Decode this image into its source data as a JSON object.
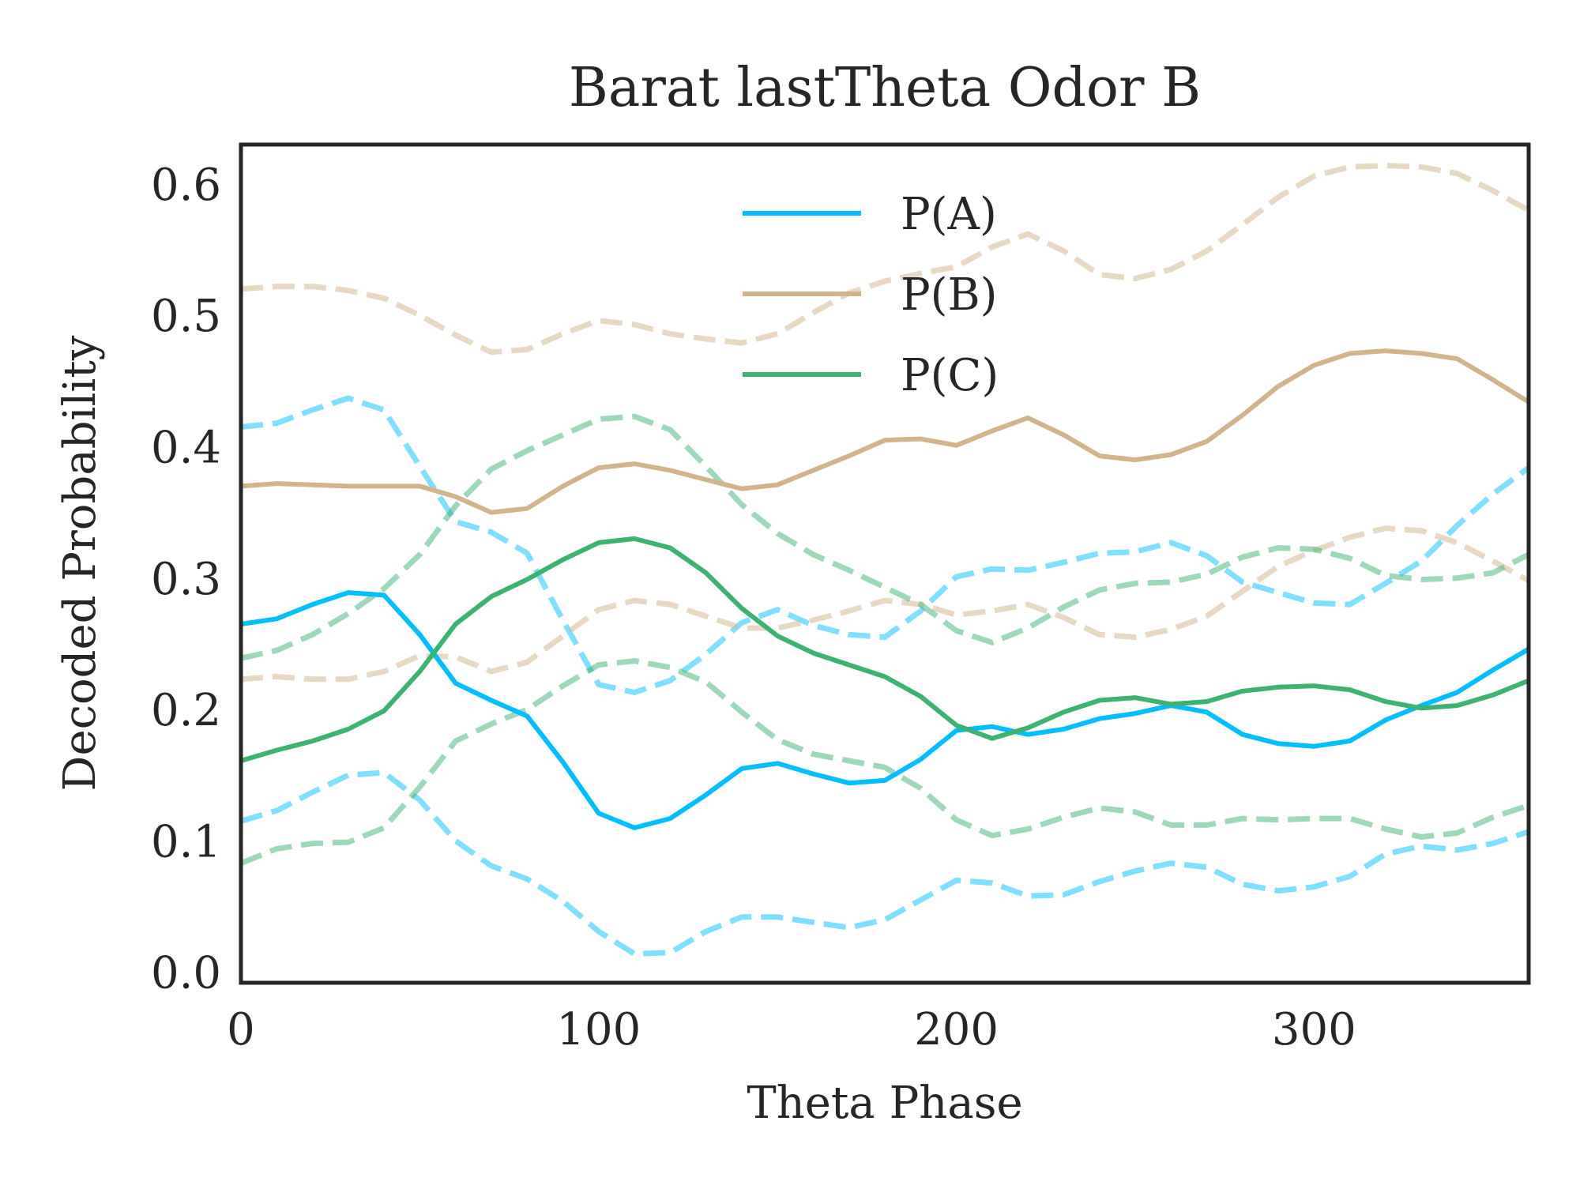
{
  "chart_data": {
    "type": "line",
    "title": "Barat lastTheta Odor B",
    "xlabel": "Theta Phase",
    "ylabel": "Decoded Probability",
    "xlim": [
      0,
      360
    ],
    "ylim": [
      -0.008,
      0.63
    ],
    "xticks": [
      0,
      100,
      200,
      300
    ],
    "xtick_labels": [
      "0",
      "100",
      "200",
      "300"
    ],
    "yticks": [
      0.0,
      0.1,
      0.2,
      0.3,
      0.4,
      0.5,
      0.6
    ],
    "ytick_labels": [
      "0.0",
      "0.1",
      "0.2",
      "0.3",
      "0.4",
      "0.5",
      "0.6"
    ],
    "grid": false,
    "legend_position": "top-center",
    "x": [
      0,
      10,
      20,
      30,
      40,
      50,
      60,
      70,
      80,
      90,
      100,
      110,
      120,
      130,
      140,
      150,
      160,
      170,
      180,
      190,
      200,
      210,
      220,
      230,
      240,
      250,
      260,
      270,
      280,
      290,
      300,
      310,
      320,
      330,
      340,
      350,
      360
    ],
    "series": [
      {
        "name": "P(A)",
        "color": "#00bfff",
        "style": "solid",
        "values": [
          0.265,
          0.269,
          0.28,
          0.289,
          0.287,
          0.257,
          0.22,
          0.207,
          0.195,
          0.16,
          0.121,
          0.11,
          0.117,
          0.135,
          0.155,
          0.159,
          0.151,
          0.144,
          0.146,
          0.162,
          0.184,
          0.187,
          0.181,
          0.185,
          0.193,
          0.197,
          0.203,
          0.198,
          0.181,
          0.174,
          0.172,
          0.176,
          0.192,
          0.203,
          0.213,
          0.23,
          0.246
        ]
      },
      {
        "name": "P(A) upper",
        "color": "#00bfff",
        "style": "dashed",
        "values": [
          0.415,
          0.418,
          0.428,
          0.437,
          0.428,
          0.385,
          0.343,
          0.335,
          0.319,
          0.268,
          0.219,
          0.213,
          0.222,
          0.242,
          0.266,
          0.276,
          0.264,
          0.257,
          0.255,
          0.275,
          0.301,
          0.307,
          0.306,
          0.312,
          0.319,
          0.32,
          0.327,
          0.317,
          0.297,
          0.289,
          0.281,
          0.28,
          0.296,
          0.313,
          0.34,
          0.364,
          0.384
        ]
      },
      {
        "name": "P(A) lower",
        "color": "#00bfff",
        "style": "dashed",
        "values": [
          0.115,
          0.123,
          0.137,
          0.15,
          0.152,
          0.131,
          0.1,
          0.081,
          0.071,
          0.054,
          0.031,
          0.014,
          0.015,
          0.031,
          0.042,
          0.042,
          0.038,
          0.034,
          0.04,
          0.055,
          0.07,
          0.068,
          0.058,
          0.059,
          0.069,
          0.077,
          0.083,
          0.08,
          0.067,
          0.062,
          0.065,
          0.073,
          0.09,
          0.096,
          0.093,
          0.098,
          0.107
        ]
      },
      {
        "name": "P(B)",
        "color": "#d2b48c",
        "style": "solid",
        "values": [
          0.37,
          0.372,
          0.371,
          0.37,
          0.37,
          0.37,
          0.362,
          0.35,
          0.353,
          0.37,
          0.384,
          0.387,
          0.382,
          0.375,
          0.368,
          0.371,
          0.382,
          0.393,
          0.405,
          0.406,
          0.401,
          0.412,
          0.422,
          0.409,
          0.393,
          0.39,
          0.394,
          0.404,
          0.424,
          0.446,
          0.462,
          0.471,
          0.473,
          0.471,
          0.467,
          0.451,
          0.434
        ]
      },
      {
        "name": "P(B) upper",
        "color": "#d2b48c",
        "style": "dashed",
        "values": [
          0.52,
          0.522,
          0.522,
          0.519,
          0.513,
          0.5,
          0.485,
          0.472,
          0.474,
          0.486,
          0.496,
          0.493,
          0.486,
          0.482,
          0.479,
          0.486,
          0.502,
          0.517,
          0.526,
          0.532,
          0.537,
          0.552,
          0.562,
          0.549,
          0.531,
          0.528,
          0.535,
          0.549,
          0.569,
          0.59,
          0.606,
          0.613,
          0.614,
          0.613,
          0.608,
          0.595,
          0.58
        ]
      },
      {
        "name": "P(B) lower",
        "color": "#d2b48c",
        "style": "dashed",
        "values": [
          0.223,
          0.225,
          0.223,
          0.223,
          0.229,
          0.241,
          0.24,
          0.229,
          0.236,
          0.256,
          0.276,
          0.283,
          0.28,
          0.271,
          0.262,
          0.262,
          0.268,
          0.275,
          0.283,
          0.28,
          0.272,
          0.275,
          0.28,
          0.27,
          0.257,
          0.255,
          0.261,
          0.271,
          0.29,
          0.309,
          0.321,
          0.331,
          0.338,
          0.336,
          0.327,
          0.313,
          0.298
        ]
      },
      {
        "name": "P(C)",
        "color": "#3cb371",
        "style": "solid",
        "values": [
          0.161,
          0.169,
          0.176,
          0.185,
          0.199,
          0.229,
          0.265,
          0.286,
          0.299,
          0.314,
          0.327,
          0.33,
          0.323,
          0.304,
          0.277,
          0.256,
          0.243,
          0.234,
          0.225,
          0.21,
          0.188,
          0.178,
          0.186,
          0.198,
          0.207,
          0.209,
          0.204,
          0.206,
          0.214,
          0.217,
          0.218,
          0.215,
          0.206,
          0.201,
          0.203,
          0.211,
          0.222
        ]
      },
      {
        "name": "P(C) upper",
        "color": "#3cb371",
        "style": "dashed",
        "values": [
          0.239,
          0.245,
          0.257,
          0.273,
          0.292,
          0.318,
          0.355,
          0.383,
          0.397,
          0.409,
          0.421,
          0.423,
          0.413,
          0.385,
          0.356,
          0.334,
          0.318,
          0.306,
          0.293,
          0.28,
          0.26,
          0.251,
          0.262,
          0.278,
          0.291,
          0.296,
          0.297,
          0.303,
          0.316,
          0.323,
          0.322,
          0.315,
          0.302,
          0.299,
          0.3,
          0.304,
          0.318
        ]
      },
      {
        "name": "P(C) lower",
        "color": "#3cb371",
        "style": "dashed",
        "values": [
          0.083,
          0.094,
          0.098,
          0.099,
          0.11,
          0.141,
          0.176,
          0.189,
          0.2,
          0.218,
          0.234,
          0.237,
          0.232,
          0.221,
          0.198,
          0.177,
          0.166,
          0.161,
          0.156,
          0.14,
          0.116,
          0.104,
          0.109,
          0.118,
          0.125,
          0.122,
          0.112,
          0.112,
          0.117,
          0.116,
          0.117,
          0.117,
          0.109,
          0.103,
          0.106,
          0.118,
          0.127
        ]
      }
    ],
    "legend": [
      "P(A)",
      "P(B)",
      "P(C)"
    ]
  },
  "colors": {
    "p_a": "#00bfff",
    "p_b": "#d2b48c",
    "p_c": "#3cb371",
    "axes": "#262626"
  }
}
